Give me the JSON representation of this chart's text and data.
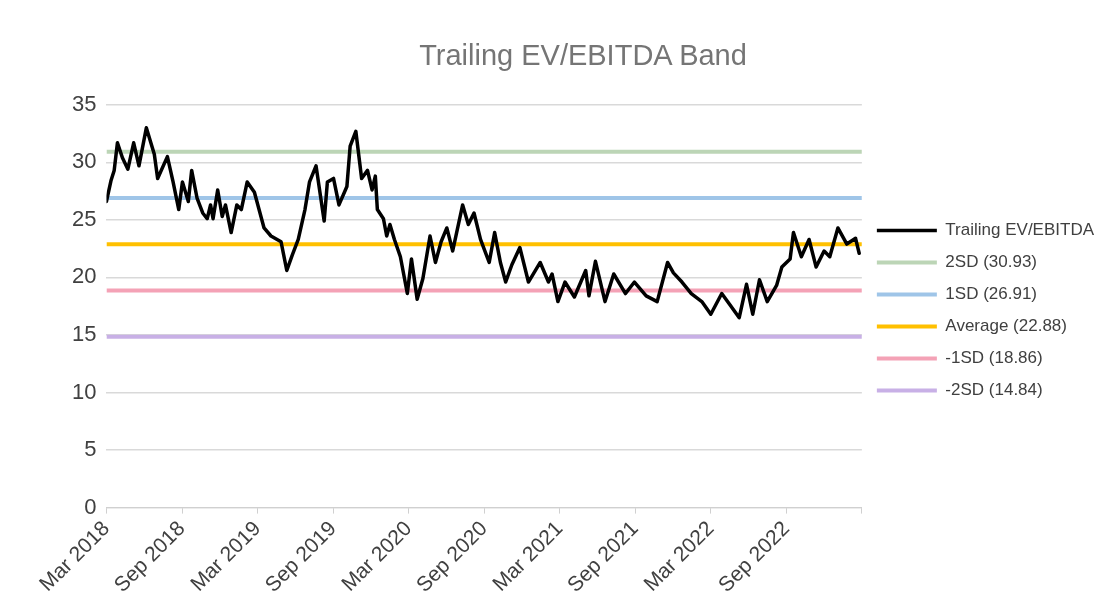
{
  "chart_data": {
    "type": "line",
    "title": "Trailing EV/EBITDA Band",
    "x": [
      "2018-03-01",
      "2018-03-12",
      "2018-03-20",
      "2018-03-28",
      "2018-04-09",
      "2018-04-22",
      "2018-05-06",
      "2018-05-19",
      "2018-06-06",
      "2018-06-25",
      "2018-07-03",
      "2018-07-27",
      "2018-08-10",
      "2018-08-24",
      "2018-09-02",
      "2018-09-16",
      "2018-09-24",
      "2018-10-07",
      "2018-10-21",
      "2018-11-01",
      "2018-11-09",
      "2018-11-15",
      "2018-11-26",
      "2018-12-07",
      "2018-12-15",
      "2018-12-29",
      "2019-01-12",
      "2019-01-23",
      "2019-02-06",
      "2019-02-22",
      "2019-03-17",
      "2019-04-03",
      "2019-04-27",
      "2019-05-11",
      "2019-05-24",
      "2019-06-08",
      "2019-06-24",
      "2019-07-05",
      "2019-07-21",
      "2019-08-10",
      "2019-08-18",
      "2019-09-02",
      "2019-09-15",
      "2019-10-04",
      "2019-10-12",
      "2019-10-26",
      "2019-11-09",
      "2019-11-23",
      "2019-12-04",
      "2019-12-12",
      "2019-12-17",
      "2020-01-01",
      "2020-01-09",
      "2020-01-17",
      "2020-01-28",
      "2020-02-11",
      "2020-02-27",
      "2020-03-08",
      "2020-03-22",
      "2020-04-05",
      "2020-04-22",
      "2020-05-05",
      "2020-05-19",
      "2020-06-02",
      "2020-06-16",
      "2020-07-10",
      "2020-07-24",
      "2020-08-07",
      "2020-08-23",
      "2020-09-13",
      "2020-09-26",
      "2020-10-10",
      "2020-10-23",
      "2020-11-07",
      "2020-11-26",
      "2020-12-17",
      "2021-01-15",
      "2021-02-04",
      "2021-02-12",
      "2021-02-25",
      "2021-03-14",
      "2021-04-06",
      "2021-05-03",
      "2021-05-11",
      "2021-05-27",
      "2021-06-19",
      "2021-07-10",
      "2021-08-08",
      "2021-08-30",
      "2021-09-27",
      "2021-10-24",
      "2021-11-18",
      "2021-12-02",
      "2021-12-23",
      "2022-01-15",
      "2022-02-09",
      "2022-03-01",
      "2022-03-28",
      "2022-04-17",
      "2022-05-09",
      "2022-05-27",
      "2022-06-11",
      "2022-06-27",
      "2022-07-16",
      "2022-08-08",
      "2022-08-21",
      "2022-09-10",
      "2022-09-18",
      "2022-10-07",
      "2022-10-26",
      "2022-11-12",
      "2022-12-01",
      "2022-12-15",
      "2023-01-04",
      "2023-01-26",
      "2023-02-15",
      "2023-02-23"
    ],
    "series": [
      {
        "name": "Trailing EV/EBITDA",
        "color": "#000000",
        "values": [
          26.6,
          28.4,
          29.3,
          31.7,
          30.4,
          29.4,
          31.7,
          29.7,
          33.0,
          30.7,
          28.6,
          30.5,
          28.3,
          25.9,
          28.3,
          26.6,
          29.3,
          26.9,
          25.6,
          25.1,
          26.3,
          25.1,
          27.6,
          25.3,
          26.3,
          23.9,
          26.3,
          25.9,
          28.3,
          27.4,
          24.3,
          23.6,
          23.1,
          20.6,
          21.9,
          23.3,
          25.9,
          28.3,
          29.7,
          24.9,
          28.3,
          28.6,
          26.3,
          27.9,
          31.4,
          32.7,
          28.6,
          29.3,
          27.6,
          28.8,
          25.9,
          25.1,
          23.6,
          24.6,
          23.3,
          21.8,
          18.6,
          21.6,
          18.1,
          19.9,
          23.6,
          21.3,
          23.1,
          24.3,
          22.3,
          26.3,
          24.6,
          25.6,
          23.3,
          21.3,
          23.9,
          21.3,
          19.6,
          21.1,
          22.6,
          19.6,
          21.3,
          19.6,
          20.3,
          17.9,
          19.6,
          18.3,
          20.6,
          18.4,
          21.4,
          17.9,
          20.3,
          18.6,
          19.6,
          18.4,
          17.9,
          21.3,
          20.4,
          19.6,
          18.6,
          17.9,
          16.8,
          18.6,
          17.6,
          16.5,
          19.4,
          16.8,
          19.8,
          17.9,
          19.3,
          20.9,
          21.6,
          23.9,
          21.8,
          23.3,
          20.9,
          22.3,
          21.8,
          24.3,
          22.9,
          23.4,
          22.1
        ]
      }
    ],
    "ref_lines": [
      {
        "axis": "y",
        "value": 30.93,
        "label": "2SD (30.93)",
        "color": "#bcd5b6"
      },
      {
        "axis": "y",
        "value": 26.91,
        "label": "1SD (26.91)",
        "color": "#9fc5e8"
      },
      {
        "axis": "y",
        "value": 22.88,
        "label": "Average (22.88)",
        "color": "#ffc000"
      },
      {
        "axis": "y",
        "value": 18.86,
        "label": "-1SD (18.86)",
        "color": "#f4a2b6"
      },
      {
        "axis": "y",
        "value": 14.84,
        "label": "-2SD (14.84)",
        "color": "#c8b0e6"
      }
    ],
    "xlim": [
      "2018-03-01",
      "2023-03-01"
    ],
    "xticks": [
      {
        "value": "2018-03-01",
        "label": "Mar 2018"
      },
      {
        "value": "2018-09-01",
        "label": "Sep 2018"
      },
      {
        "value": "2019-03-01",
        "label": "Mar 2019"
      },
      {
        "value": "2019-09-01",
        "label": "Sep 2019"
      },
      {
        "value": "2020-03-01",
        "label": "Mar 2020"
      },
      {
        "value": "2020-09-01",
        "label": "Sep 2020"
      },
      {
        "value": "2021-03-01",
        "label": "Mar 2021"
      },
      {
        "value": "2021-09-01",
        "label": "Sep 2021"
      },
      {
        "value": "2022-03-01",
        "label": "Mar 2022"
      },
      {
        "value": "2022-09-01",
        "label": "Sep 2022"
      },
      {
        "value": "2023-03-01",
        "label": null
      }
    ],
    "ylim": [
      0,
      35
    ],
    "yticks": [
      0,
      5,
      10,
      15,
      20,
      25,
      30,
      35
    ],
    "grid": "y",
    "legend": "right",
    "marker": "none",
    "line_style": "solid"
  }
}
